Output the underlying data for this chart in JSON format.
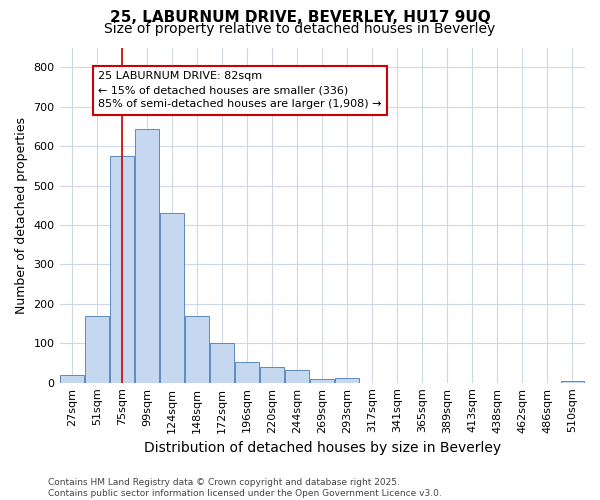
{
  "title1": "25, LABURNUM DRIVE, BEVERLEY, HU17 9UQ",
  "title2": "Size of property relative to detached houses in Beverley",
  "xlabel": "Distribution of detached houses by size in Beverley",
  "ylabel": "Number of detached properties",
  "categories": [
    "27sqm",
    "51sqm",
    "75sqm",
    "99sqm",
    "124sqm",
    "148sqm",
    "172sqm",
    "196sqm",
    "220sqm",
    "244sqm",
    "269sqm",
    "293sqm",
    "317sqm",
    "341sqm",
    "365sqm",
    "389sqm",
    "413sqm",
    "438sqm",
    "462sqm",
    "486sqm",
    "510sqm"
  ],
  "values": [
    20,
    168,
    575,
    643,
    430,
    170,
    100,
    52,
    40,
    33,
    10,
    12,
    0,
    0,
    0,
    0,
    0,
    0,
    0,
    0,
    5
  ],
  "bar_color": "#c5d8f0",
  "bar_edge_color": "#5b8bbf",
  "vline_x_idx": 2,
  "vline_color": "#cc0000",
  "annotation_text": "25 LABURNUM DRIVE: 82sqm\n← 15% of detached houses are smaller (336)\n85% of semi-detached houses are larger (1,908) →",
  "annotation_box_facecolor": "#ffffff",
  "annotation_box_edgecolor": "#cc0000",
  "footer": "Contains HM Land Registry data © Crown copyright and database right 2025.\nContains public sector information licensed under the Open Government Licence v3.0.",
  "ylim": [
    0,
    850
  ],
  "yticks": [
    0,
    100,
    200,
    300,
    400,
    500,
    600,
    700,
    800
  ],
  "plot_bg_color": "#ffffff",
  "fig_bg_color": "#ffffff",
  "grid_color": "#d0d8e8",
  "title1_fontsize": 11,
  "title2_fontsize": 10,
  "tick_fontsize": 8,
  "ylabel_fontsize": 9,
  "xlabel_fontsize": 10,
  "footer_fontsize": 6.5,
  "ann_fontsize": 8
}
